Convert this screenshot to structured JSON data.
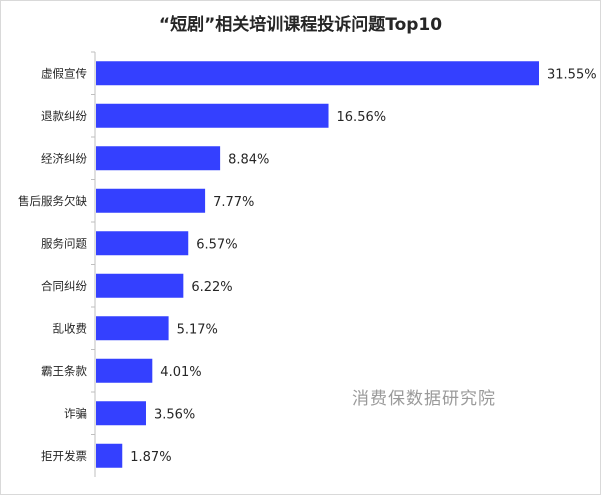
{
  "chart_data": {
    "type": "bar",
    "orientation": "horizontal",
    "title": "“短剧”相关培训课程投诉问题Top10",
    "categories": [
      "虚假宣传",
      "退款纠纷",
      "经济纠纷",
      "售后服务欠缺",
      "服务问题",
      "合同纠纷",
      "乱收费",
      "霸王条款",
      "诈骗",
      "拒开发票"
    ],
    "values": [
      31.55,
      16.56,
      8.84,
      7.77,
      6.57,
      6.22,
      5.17,
      4.01,
      3.56,
      1.87
    ],
    "value_labels": [
      "31.55%",
      "16.56%",
      "8.84%",
      "7.77%",
      "6.57%",
      "6.22%",
      "5.17%",
      "4.01%",
      "3.56%",
      "1.87%"
    ],
    "unit": "%",
    "bar_color": "#3440ff",
    "xlim": [
      0,
      31.55
    ],
    "grid": false,
    "legend": "none"
  },
  "watermark": "消费保数据研究院"
}
